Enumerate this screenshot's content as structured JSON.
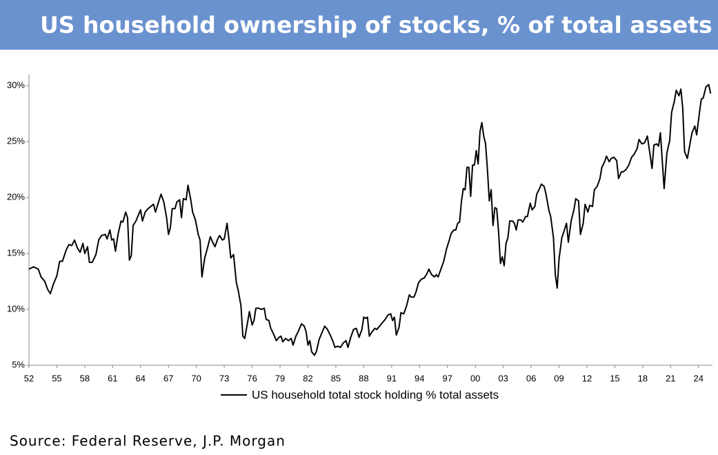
{
  "chart_data": {
    "type": "line",
    "title": "US household ownership of stocks, % of total assets",
    "source": "Source: Federal Reserve, J.P. Morgan",
    "xlim": [
      1952,
      2025.5
    ],
    "ylim": [
      5,
      31
    ],
    "xticks": [
      {
        "value": 1952,
        "label": "52"
      },
      {
        "value": 1955,
        "label": "55"
      },
      {
        "value": 1958,
        "label": "58"
      },
      {
        "value": 1961,
        "label": "61"
      },
      {
        "value": 1964,
        "label": "64"
      },
      {
        "value": 1967,
        "label": "67"
      },
      {
        "value": 1970,
        "label": "70"
      },
      {
        "value": 1973,
        "label": "73"
      },
      {
        "value": 1976,
        "label": "76"
      },
      {
        "value": 1979,
        "label": "79"
      },
      {
        "value": 1982,
        "label": "82"
      },
      {
        "value": 1985,
        "label": "85"
      },
      {
        "value": 1988,
        "label": "88"
      },
      {
        "value": 1991,
        "label": "91"
      },
      {
        "value": 1994,
        "label": "94"
      },
      {
        "value": 1997,
        "label": "97"
      },
      {
        "value": 2000,
        "label": "00"
      },
      {
        "value": 2003,
        "label": "03"
      },
      {
        "value": 2006,
        "label": "06"
      },
      {
        "value": 2009,
        "label": "09"
      },
      {
        "value": 2012,
        "label": "12"
      },
      {
        "value": 2015,
        "label": "15"
      },
      {
        "value": 2018,
        "label": "18"
      },
      {
        "value": 2021,
        "label": "21"
      },
      {
        "value": 2024,
        "label": "24"
      }
    ],
    "yticks": [
      {
        "value": 5,
        "label": "5%"
      },
      {
        "value": 10,
        "label": "10%"
      },
      {
        "value": 15,
        "label": "15%"
      },
      {
        "value": 20,
        "label": "20%"
      },
      {
        "value": 25,
        "label": "25%"
      },
      {
        "value": 30,
        "label": "30%"
      }
    ],
    "legend": "bottom",
    "x": [
      1952.0,
      1952.5,
      1953.0,
      1953.3,
      1953.7,
      1954.0,
      1954.3,
      1954.6,
      1955.0,
      1955.3,
      1955.6,
      1956.0,
      1956.3,
      1956.6,
      1956.9,
      1957.2,
      1957.5,
      1957.8,
      1958.0,
      1958.3,
      1958.5,
      1958.8,
      1959.2,
      1959.5,
      1959.8,
      1960.2,
      1960.4,
      1960.7,
      1960.9,
      1961.1,
      1961.3,
      1961.6,
      1961.9,
      1962.1,
      1962.4,
      1962.6,
      1962.8,
      1963.0,
      1963.2,
      1963.5,
      1963.8,
      1964.0,
      1964.2,
      1964.5,
      1964.8,
      1965.1,
      1965.4,
      1965.6,
      1965.9,
      1966.2,
      1966.5,
      1966.8,
      1967.0,
      1967.2,
      1967.4,
      1967.7,
      1967.9,
      1968.2,
      1968.4,
      1968.6,
      1968.9,
      1969.1,
      1969.4,
      1969.6,
      1969.9,
      1970.2,
      1970.4,
      1970.6,
      1970.9,
      1971.2,
      1971.5,
      1971.7,
      1972.0,
      1972.3,
      1972.5,
      1972.8,
      1973.0,
      1973.3,
      1973.5,
      1973.7,
      1974.0,
      1974.3,
      1974.5,
      1974.8,
      1975.0,
      1975.2,
      1975.5,
      1975.7,
      1976.0,
      1976.2,
      1976.4,
      1976.7,
      1977.0,
      1977.3,
      1977.5,
      1977.8,
      1978.0,
      1978.3,
      1978.6,
      1978.9,
      1979.1,
      1979.3,
      1979.6,
      1979.9,
      1980.2,
      1980.4,
      1980.7,
      1981.0,
      1981.3,
      1981.6,
      1981.8,
      1982.0,
      1982.2,
      1982.4,
      1982.7,
      1982.9,
      1983.2,
      1983.5,
      1983.8,
      1984.1,
      1984.4,
      1984.7,
      1984.9,
      1985.2,
      1985.5,
      1985.8,
      1986.1,
      1986.3,
      1986.6,
      1986.9,
      1987.2,
      1987.5,
      1987.8,
      1988.0,
      1988.2,
      1988.4,
      1988.6,
      1988.9,
      1989.2,
      1989.4,
      1989.7,
      1990.0,
      1990.3,
      1990.6,
      1990.9,
      1991.1,
      1991.3,
      1991.5,
      1991.8,
      1992.0,
      1992.3,
      1992.6,
      1992.9,
      1993.1,
      1993.4,
      1993.6,
      1993.9,
      1994.2,
      1994.5,
      1994.8,
      1995.0,
      1995.3,
      1995.6,
      1995.8,
      1996.0,
      1996.3,
      1996.6,
      1996.9,
      1997.2,
      1997.4,
      1997.7,
      1997.9,
      1998.1,
      1998.3,
      1998.5,
      1998.7,
      1998.9,
      1999.1,
      1999.3,
      1999.5,
      1999.7,
      1999.9,
      2000.1,
      2000.3,
      2000.5,
      2000.7,
      2000.9,
      2001.1,
      2001.3,
      2001.5,
      2001.7,
      2001.9,
      2002.1,
      2002.3,
      2002.5,
      2002.7,
      2002.9,
      2003.1,
      2003.3,
      2003.5,
      2003.7,
      2004.0,
      2004.2,
      2004.4,
      2004.6,
      2004.9,
      2005.1,
      2005.4,
      2005.6,
      2005.9,
      2006.1,
      2006.4,
      2006.6,
      2006.9,
      2007.1,
      2007.4,
      2007.6,
      2007.9,
      2008.1,
      2008.4,
      2008.6,
      2008.8,
      2009.0,
      2009.3,
      2009.5,
      2009.8,
      2010.0,
      2010.3,
      2010.6,
      2010.8,
      2011.1,
      2011.3,
      2011.6,
      2011.8,
      2012.1,
      2012.3,
      2012.6,
      2012.8,
      2013.1,
      2013.4,
      2013.6,
      2013.9,
      2014.1,
      2014.4,
      2014.6,
      2014.9,
      2015.2,
      2015.4,
      2015.7,
      2015.9,
      2016.2,
      2016.5,
      2016.8,
      2017.1,
      2017.4,
      2017.6,
      2017.9,
      2018.2,
      2018.5,
      2019.0,
      2019.2,
      2019.5,
      2019.7,
      2019.9,
      2020.3,
      2020.6,
      2020.9,
      2021.1,
      2021.4,
      2021.6,
      2021.9,
      2022.1,
      2022.3,
      2022.5,
      2022.8,
      2023.1,
      2023.3,
      2023.6,
      2023.8,
      2024.1,
      2024.3,
      2024.5,
      2024.8,
      2025.1,
      2025.3
    ],
    "series": [
      {
        "name": "US household total stock holding % total assets",
        "color": "#000000",
        "values": [
          13.6,
          13.8,
          13.6,
          12.9,
          12.5,
          11.8,
          11.4,
          12.2,
          13.0,
          14.3,
          14.3,
          15.3,
          15.8,
          15.7,
          16.2,
          15.5,
          15.1,
          15.9,
          15.0,
          15.6,
          14.2,
          14.2,
          14.9,
          16.2,
          16.6,
          16.7,
          16.3,
          17.1,
          16.2,
          16.3,
          15.2,
          16.8,
          17.9,
          17.8,
          18.7,
          18.2,
          14.4,
          14.8,
          17.5,
          17.9,
          18.5,
          18.9,
          17.9,
          18.7,
          19.0,
          19.2,
          19.4,
          18.7,
          19.5,
          20.3,
          19.6,
          18.2,
          16.7,
          17.3,
          19.0,
          19.0,
          19.6,
          19.8,
          18.2,
          19.9,
          19.8,
          21.1,
          19.8,
          18.7,
          18.0,
          16.7,
          16.2,
          12.9,
          14.6,
          15.5,
          16.5,
          16.1,
          15.6,
          16.3,
          16.6,
          16.2,
          16.3,
          17.7,
          16.3,
          14.6,
          14.9,
          12.4,
          11.7,
          10.3,
          7.6,
          7.4,
          8.8,
          9.8,
          8.6,
          9.0,
          10.1,
          10.1,
          10.0,
          10.1,
          9.1,
          9.0,
          8.3,
          7.8,
          7.2,
          7.5,
          7.6,
          7.1,
          7.4,
          7.2,
          7.4,
          6.8,
          7.6,
          8.1,
          8.7,
          8.5,
          8.0,
          6.8,
          7.2,
          6.2,
          5.9,
          6.2,
          7.3,
          7.9,
          8.5,
          8.2,
          7.7,
          7.1,
          6.6,
          6.7,
          6.6,
          7.0,
          7.2,
          6.6,
          7.5,
          8.2,
          8.3,
          7.5,
          8.2,
          9.3,
          9.2,
          9.3,
          7.6,
          8.0,
          8.3,
          8.2,
          8.5,
          8.8,
          9.1,
          9.5,
          9.6,
          9.0,
          9.3,
          7.7,
          8.4,
          9.7,
          9.6,
          10.3,
          11.3,
          11.1,
          11.1,
          11.5,
          12.4,
          12.7,
          12.8,
          13.2,
          13.6,
          13.1,
          12.9,
          13.1,
          12.9,
          13.6,
          14.3,
          15.4,
          16.2,
          16.8,
          17.1,
          17.1,
          17.7,
          17.8,
          19.6,
          20.8,
          20.7,
          22.7,
          22.7,
          20.1,
          22.9,
          22.9,
          24.2,
          23.0,
          25.9,
          26.7,
          25.5,
          24.8,
          22.5,
          19.7,
          20.7,
          17.5,
          19.1,
          19.0,
          16.9,
          14.1,
          14.7,
          13.9,
          15.9,
          16.4,
          17.9,
          17.9,
          17.7,
          17.1,
          18.0,
          18.0,
          17.8,
          18.3,
          18.3,
          19.5,
          18.9,
          19.2,
          20.3,
          20.8,
          21.2,
          21.0,
          20.3,
          18.9,
          18.3,
          16.4,
          13.1,
          11.9,
          14.5,
          16.4,
          16.9,
          17.7,
          16.0,
          17.9,
          18.9,
          19.9,
          19.7,
          16.7,
          17.7,
          19.4,
          18.7,
          19.3,
          19.2,
          20.7,
          21.0,
          21.7,
          22.7,
          23.2,
          23.7,
          23.2,
          23.5,
          23.6,
          23.3,
          21.7,
          22.3,
          22.3,
          22.5,
          22.9,
          23.6,
          23.9,
          24.4,
          25.2,
          24.8,
          24.9,
          25.5,
          22.6,
          24.7,
          24.8,
          24.6,
          25.8,
          20.8,
          24.0,
          25.1,
          27.6,
          28.6,
          29.6,
          29.1,
          29.7,
          28.0,
          24.1,
          23.5,
          24.9,
          25.8,
          26.4,
          25.6,
          27.6,
          28.8,
          28.9,
          29.9,
          30.1,
          29.3
        ]
      }
    ]
  }
}
